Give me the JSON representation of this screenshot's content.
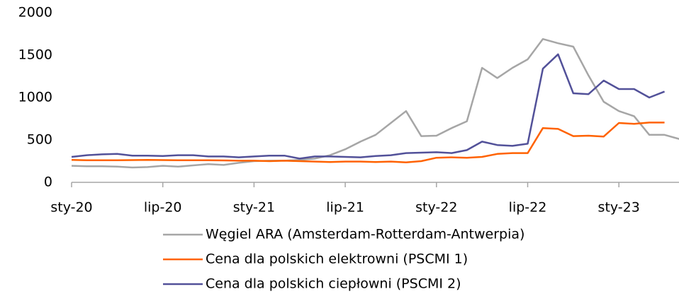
{
  "chart_data": {
    "type": "line",
    "categories": [
      "sty-20",
      null,
      null,
      null,
      null,
      null,
      "lip-20",
      null,
      null,
      null,
      null,
      null,
      "sty-21",
      null,
      null,
      null,
      null,
      null,
      "lip-21",
      null,
      null,
      null,
      null,
      null,
      "sty-22",
      null,
      null,
      null,
      null,
      null,
      "lip-22",
      null,
      null,
      null,
      null,
      null,
      "sty-23",
      null,
      null,
      null,
      null
    ],
    "series": [
      {
        "name": "Węgiel ARA (Amsterdam-Rotterdam-Antwerpia)",
        "color": "#a6a6a6",
        "values": [
          195,
          190,
          190,
          185,
          175,
          180,
          195,
          185,
          200,
          215,
          205,
          230,
          250,
          255,
          255,
          265,
          280,
          320,
          390,
          480,
          560,
          700,
          840,
          545,
          550,
          640,
          720,
          1350,
          1230,
          1350,
          1450,
          1690,
          1640,
          1600,
          1260,
          950,
          840,
          780,
          560,
          560,
          510
        ]
      },
      {
        "name": "Cena dla polskich elektrowni (PSCMI 1)",
        "color": "#ff6200",
        "values": [
          265,
          260,
          260,
          260,
          262,
          265,
          262,
          260,
          260,
          260,
          258,
          255,
          255,
          250,
          255,
          250,
          245,
          240,
          245,
          245,
          240,
          245,
          235,
          250,
          290,
          295,
          290,
          300,
          335,
          345,
          345,
          640,
          630,
          545,
          550,
          540,
          700,
          690,
          705,
          705,
          null
        ]
      },
      {
        "name": "Cena dla polskich ciepłowni (PSCMI 2)",
        "color": "#525199",
        "values": [
          300,
          320,
          330,
          335,
          315,
          315,
          310,
          320,
          320,
          305,
          305,
          295,
          305,
          315,
          315,
          280,
          305,
          305,
          300,
          295,
          310,
          320,
          345,
          350,
          355,
          345,
          380,
          480,
          440,
          430,
          455,
          1340,
          1510,
          1050,
          1040,
          1200,
          1100,
          1100,
          1000,
          1070,
          null
        ]
      }
    ],
    "ylim": [
      0,
      2000
    ],
    "yticks": [
      0,
      500,
      1000,
      1500,
      2000
    ],
    "grid": false
  }
}
